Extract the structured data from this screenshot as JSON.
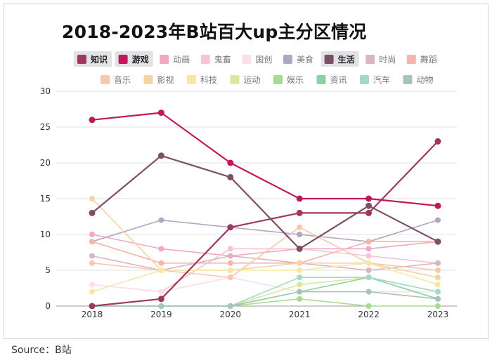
{
  "title": "2018-2023年B站百大up主分区情况",
  "source": "Source：B站",
  "chart_data": {
    "type": "line",
    "title": "2018-2023年B站百大up主分区情况",
    "xlabel": "",
    "ylabel": "",
    "x": [
      "2018",
      "2019",
      "2020",
      "2021",
      "2022",
      "2023"
    ],
    "ylim": [
      0,
      30
    ],
    "yticks": [
      0,
      5,
      10,
      15,
      20,
      25,
      30
    ],
    "grid": true,
    "legend_position": "top",
    "series": [
      {
        "name": "知识",
        "color": "#a3365f",
        "highlighted": true,
        "values": [
          0,
          1,
          11,
          13,
          13,
          23
        ]
      },
      {
        "name": "游戏",
        "color": "#c2185b",
        "highlighted": true,
        "values": [
          26,
          27,
          20,
          15,
          15,
          14
        ]
      },
      {
        "name": "动画",
        "color": "#f0a8c4",
        "highlighted": false,
        "values": [
          10,
          8,
          7,
          8,
          8,
          9
        ]
      },
      {
        "name": "鬼畜",
        "color": "#f7c3d6",
        "highlighted": false,
        "values": [
          3,
          2,
          8,
          8,
          7,
          6
        ]
      },
      {
        "name": "国创",
        "color": "#fbe0ea",
        "highlighted": false,
        "values": [
          3,
          2,
          4,
          2,
          2,
          2
        ]
      },
      {
        "name": "美食",
        "color": "#b4a5c0",
        "highlighted": false,
        "values": [
          9,
          12,
          11,
          10,
          9,
          12
        ]
      },
      {
        "name": "生活",
        "color": "#7d4f66",
        "highlighted": true,
        "values": [
          13,
          21,
          18,
          8,
          14,
          9
        ]
      },
      {
        "name": "时尚",
        "color": "#dbb6be",
        "highlighted": false,
        "values": [
          7,
          5,
          7,
          6,
          5,
          6
        ]
      },
      {
        "name": "舞蹈",
        "color": "#f3b6ae",
        "highlighted": false,
        "values": [
          9,
          6,
          6,
          6,
          9,
          9
        ]
      },
      {
        "name": "音乐",
        "color": "#f7c8ae",
        "highlighted": false,
        "values": [
          6,
          5,
          4,
          11,
          6,
          5
        ]
      },
      {
        "name": "影视",
        "color": "#f8d1a5",
        "highlighted": false,
        "values": [
          15,
          5,
          5,
          6,
          6,
          4
        ]
      },
      {
        "name": "科技",
        "color": "#f7e7a6",
        "highlighted": false,
        "values": [
          2,
          5,
          5,
          5,
          6,
          3
        ]
      },
      {
        "name": "运动",
        "color": "#d9e89c",
        "highlighted": false,
        "values": [
          0,
          0,
          0,
          3,
          4,
          2
        ]
      },
      {
        "name": "娱乐",
        "color": "#a9da8f",
        "highlighted": false,
        "values": [
          0,
          0,
          0,
          1,
          0,
          0
        ]
      },
      {
        "name": "资讯",
        "color": "#8fd0a6",
        "highlighted": false,
        "values": [
          0,
          0,
          0,
          2,
          4,
          1
        ]
      },
      {
        "name": "汽车",
        "color": "#a3d9c6",
        "highlighted": false,
        "values": [
          0,
          0,
          0,
          4,
          4,
          2
        ]
      },
      {
        "name": "动物",
        "color": "#a8c4b6",
        "highlighted": false,
        "values": [
          0,
          0,
          0,
          2,
          2,
          1
        ]
      }
    ]
  }
}
